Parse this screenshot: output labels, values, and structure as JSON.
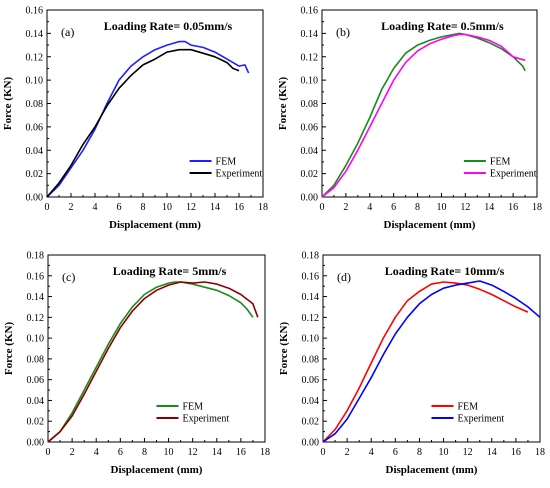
{
  "chart_data": [
    {
      "type": "line",
      "panel_label": "(a)",
      "title": "Loading Rate= 0.05mm/s",
      "xlabel": "Displacement (mm)",
      "ylabel": "Force (KN)",
      "xlim": [
        0,
        18
      ],
      "ylim": [
        0,
        0.16
      ],
      "xticks": [
        "0",
        "2",
        "4",
        "6",
        "8",
        "10",
        "12",
        "14",
        "16",
        "18"
      ],
      "yticks": [
        "0.00",
        "0.02",
        "0.04",
        "0.06",
        "0.08",
        "0.10",
        "0.12",
        "0.14",
        "0.16"
      ],
      "legend_position": "bottom-right",
      "series": [
        {
          "name": "FEM",
          "color": "#1f1fff",
          "x": [
            0,
            1,
            2,
            3,
            4,
            5,
            6,
            7,
            8,
            9,
            10,
            11,
            11.5,
            12,
            13,
            14,
            15,
            16,
            16.5,
            16.8
          ],
          "y": [
            0,
            0.01,
            0.025,
            0.04,
            0.058,
            0.08,
            0.1,
            0.112,
            0.12,
            0.126,
            0.13,
            0.133,
            0.133,
            0.13,
            0.128,
            0.124,
            0.118,
            0.112,
            0.113,
            0.106
          ]
        },
        {
          "name": "Experiment",
          "color": "#000000",
          "x": [
            0,
            1,
            2,
            3,
            4,
            5,
            6,
            7,
            8,
            9,
            10,
            11,
            12,
            13,
            14,
            15,
            15.5,
            16
          ],
          "y": [
            0,
            0.012,
            0.027,
            0.045,
            0.06,
            0.078,
            0.093,
            0.104,
            0.113,
            0.118,
            0.124,
            0.126,
            0.126,
            0.123,
            0.12,
            0.115,
            0.11,
            0.108
          ]
        }
      ]
    },
    {
      "type": "line",
      "panel_label": "(b)",
      "title": "Loading Rate= 0.5mm/s",
      "xlabel": "Displacement (mm)",
      "ylabel": "Force (KN)",
      "xlim": [
        0,
        18
      ],
      "ylim": [
        0,
        0.16
      ],
      "xticks": [
        "0",
        "2",
        "4",
        "6",
        "8",
        "10",
        "12",
        "14",
        "16",
        "18"
      ],
      "yticks": [
        "0.00",
        "0.02",
        "0.04",
        "0.06",
        "0.08",
        "0.10",
        "0.12",
        "0.14",
        "0.16"
      ],
      "legend_position": "bottom-right",
      "series": [
        {
          "name": "FEM",
          "color": "#1a8a1a",
          "x": [
            0,
            1,
            2,
            3,
            4,
            5,
            6,
            7,
            8,
            9,
            10,
            11,
            11.5,
            12,
            13,
            14,
            15,
            16,
            16.8,
            17
          ],
          "y": [
            0,
            0.01,
            0.027,
            0.046,
            0.068,
            0.092,
            0.11,
            0.123,
            0.13,
            0.134,
            0.137,
            0.139,
            0.14,
            0.139,
            0.136,
            0.132,
            0.127,
            0.12,
            0.112,
            0.108
          ]
        },
        {
          "name": "Experiment",
          "color": "#ff00ff",
          "x": [
            0,
            1,
            2,
            3,
            4,
            5,
            6,
            7,
            8,
            9,
            10,
            11,
            11.5,
            12,
            13,
            14,
            15,
            16,
            17
          ],
          "y": [
            0,
            0.008,
            0.022,
            0.04,
            0.06,
            0.08,
            0.1,
            0.115,
            0.125,
            0.131,
            0.135,
            0.138,
            0.139,
            0.139,
            0.137,
            0.134,
            0.129,
            0.12,
            0.117
          ]
        }
      ]
    },
    {
      "type": "line",
      "panel_label": "(c)",
      "title": "Loading Rate= 5mm/s",
      "xlabel": "Displacement (mm)",
      "ylabel": "Force (KN)",
      "xlim": [
        0,
        18
      ],
      "ylim": [
        0,
        0.18
      ],
      "xticks": [
        "0",
        "2",
        "4",
        "6",
        "8",
        "10",
        "12",
        "14",
        "16",
        "18"
      ],
      "yticks": [
        "0.00",
        "0.02",
        "0.04",
        "0.06",
        "0.08",
        "0.10",
        "0.12",
        "0.14",
        "0.16",
        "0.18"
      ],
      "legend_position": "bottom-center",
      "series": [
        {
          "name": "FEM",
          "color": "#1a8a1a",
          "x": [
            0,
            1,
            2,
            3,
            4,
            5,
            6,
            7,
            8,
            9,
            10,
            10.5,
            11,
            12,
            13,
            14,
            15,
            16,
            16.5,
            17
          ],
          "y": [
            0,
            0.01,
            0.028,
            0.05,
            0.072,
            0.094,
            0.114,
            0.13,
            0.142,
            0.149,
            0.153,
            0.154,
            0.154,
            0.152,
            0.149,
            0.146,
            0.141,
            0.134,
            0.128,
            0.12
          ]
        },
        {
          "name": "Experiment",
          "color": "#8b0000",
          "x": [
            0,
            1,
            2,
            3,
            4,
            5,
            6,
            7,
            8,
            9,
            10,
            11,
            12,
            13,
            14,
            15,
            16,
            17,
            17.4
          ],
          "y": [
            0,
            0.01,
            0.025,
            0.046,
            0.068,
            0.09,
            0.11,
            0.126,
            0.138,
            0.146,
            0.151,
            0.154,
            0.153,
            0.154,
            0.152,
            0.148,
            0.142,
            0.133,
            0.12
          ]
        }
      ]
    },
    {
      "type": "line",
      "panel_label": "(d)",
      "title": "Loading Rate= 10mm/s",
      "xlabel": "Displacement (mm)",
      "ylabel": "Force (KN)",
      "xlim": [
        0,
        18
      ],
      "ylim": [
        0,
        0.18
      ],
      "xticks": [
        "0",
        "2",
        "4",
        "6",
        "8",
        "10",
        "12",
        "14",
        "16",
        "18"
      ],
      "yticks": [
        "0.00",
        "0.02",
        "0.04",
        "0.06",
        "0.08",
        "0.10",
        "0.12",
        "0.14",
        "0.16",
        "0.18"
      ],
      "legend_position": "bottom-center",
      "series": [
        {
          "name": "FEM",
          "color": "#ff0000",
          "x": [
            0,
            1,
            2,
            3,
            4,
            5,
            6,
            7,
            8,
            9,
            10,
            11,
            12,
            13,
            14,
            15,
            16,
            17
          ],
          "y": [
            0,
            0.012,
            0.03,
            0.052,
            0.076,
            0.1,
            0.12,
            0.136,
            0.145,
            0.152,
            0.154,
            0.153,
            0.151,
            0.147,
            0.142,
            0.136,
            0.13,
            0.125
          ]
        },
        {
          "name": "Experiment",
          "color": "#0000ff",
          "x": [
            0,
            1,
            2,
            3,
            4,
            5,
            6,
            7,
            8,
            9,
            10,
            11,
            12,
            13,
            14,
            15,
            16,
            17,
            17.6,
            18
          ],
          "y": [
            0,
            0.008,
            0.022,
            0.042,
            0.062,
            0.084,
            0.104,
            0.12,
            0.133,
            0.142,
            0.148,
            0.151,
            0.153,
            0.155,
            0.151,
            0.145,
            0.138,
            0.13,
            0.124,
            0.12
          ]
        }
      ]
    }
  ]
}
